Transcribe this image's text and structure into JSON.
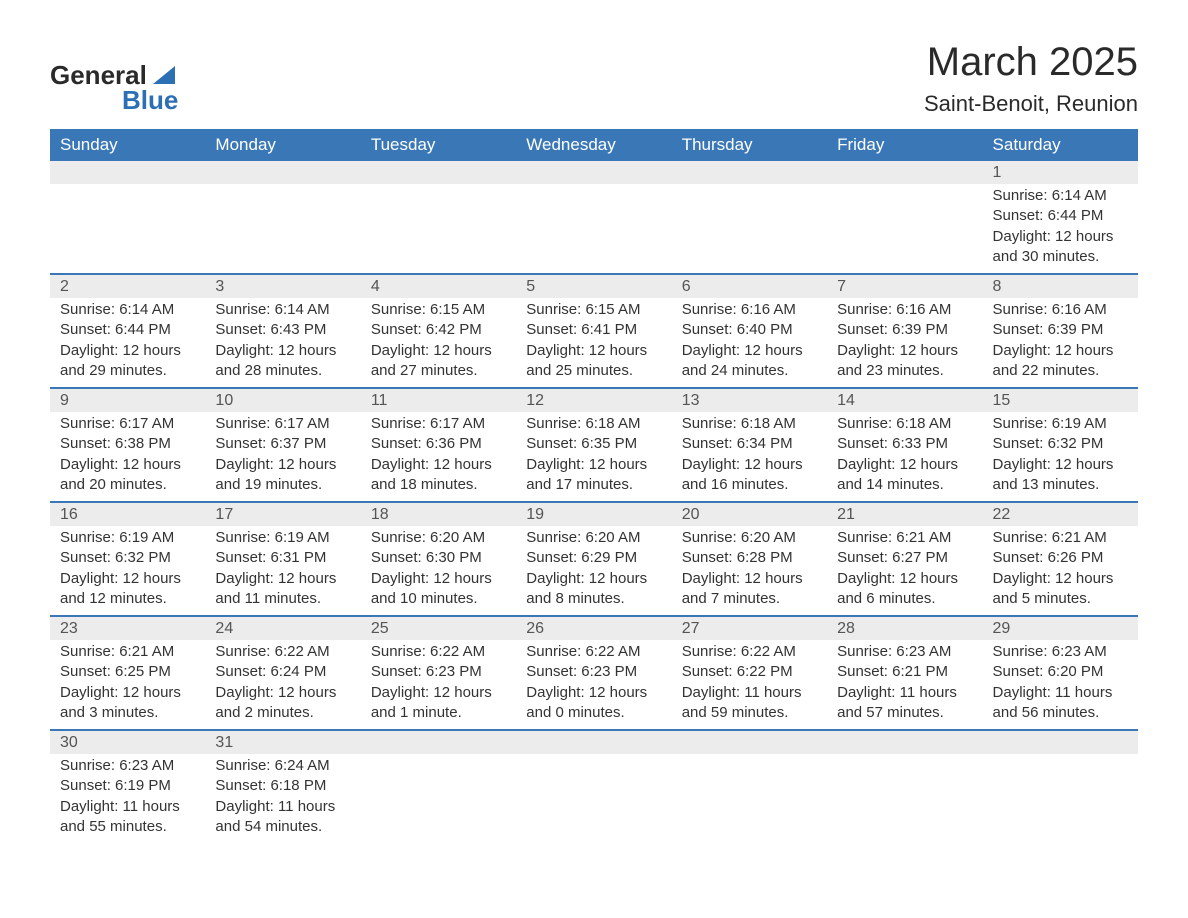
{
  "logo": {
    "word1": "General",
    "word2": "Blue"
  },
  "title": "March 2025",
  "location": "Saint-Benoit, Reunion",
  "colors": {
    "header_bg": "#3a77b7",
    "header_text": "#ffffff",
    "daynum_bg": "#ececec",
    "row_border": "#3a77b7",
    "logo_accent": "#2d6fb5",
    "body_text": "#333333"
  },
  "day_headers": [
    "Sunday",
    "Monday",
    "Tuesday",
    "Wednesday",
    "Thursday",
    "Friday",
    "Saturday"
  ],
  "weeks": [
    [
      null,
      null,
      null,
      null,
      null,
      null,
      {
        "n": "1",
        "sr": "Sunrise: 6:14 AM",
        "ss": "Sunset: 6:44 PM",
        "dl": "Daylight: 12 hours and 30 minutes."
      }
    ],
    [
      {
        "n": "2",
        "sr": "Sunrise: 6:14 AM",
        "ss": "Sunset: 6:44 PM",
        "dl": "Daylight: 12 hours and 29 minutes."
      },
      {
        "n": "3",
        "sr": "Sunrise: 6:14 AM",
        "ss": "Sunset: 6:43 PM",
        "dl": "Daylight: 12 hours and 28 minutes."
      },
      {
        "n": "4",
        "sr": "Sunrise: 6:15 AM",
        "ss": "Sunset: 6:42 PM",
        "dl": "Daylight: 12 hours and 27 minutes."
      },
      {
        "n": "5",
        "sr": "Sunrise: 6:15 AM",
        "ss": "Sunset: 6:41 PM",
        "dl": "Daylight: 12 hours and 25 minutes."
      },
      {
        "n": "6",
        "sr": "Sunrise: 6:16 AM",
        "ss": "Sunset: 6:40 PM",
        "dl": "Daylight: 12 hours and 24 minutes."
      },
      {
        "n": "7",
        "sr": "Sunrise: 6:16 AM",
        "ss": "Sunset: 6:39 PM",
        "dl": "Daylight: 12 hours and 23 minutes."
      },
      {
        "n": "8",
        "sr": "Sunrise: 6:16 AM",
        "ss": "Sunset: 6:39 PM",
        "dl": "Daylight: 12 hours and 22 minutes."
      }
    ],
    [
      {
        "n": "9",
        "sr": "Sunrise: 6:17 AM",
        "ss": "Sunset: 6:38 PM",
        "dl": "Daylight: 12 hours and 20 minutes."
      },
      {
        "n": "10",
        "sr": "Sunrise: 6:17 AM",
        "ss": "Sunset: 6:37 PM",
        "dl": "Daylight: 12 hours and 19 minutes."
      },
      {
        "n": "11",
        "sr": "Sunrise: 6:17 AM",
        "ss": "Sunset: 6:36 PM",
        "dl": "Daylight: 12 hours and 18 minutes."
      },
      {
        "n": "12",
        "sr": "Sunrise: 6:18 AM",
        "ss": "Sunset: 6:35 PM",
        "dl": "Daylight: 12 hours and 17 minutes."
      },
      {
        "n": "13",
        "sr": "Sunrise: 6:18 AM",
        "ss": "Sunset: 6:34 PM",
        "dl": "Daylight: 12 hours and 16 minutes."
      },
      {
        "n": "14",
        "sr": "Sunrise: 6:18 AM",
        "ss": "Sunset: 6:33 PM",
        "dl": "Daylight: 12 hours and 14 minutes."
      },
      {
        "n": "15",
        "sr": "Sunrise: 6:19 AM",
        "ss": "Sunset: 6:32 PM",
        "dl": "Daylight: 12 hours and 13 minutes."
      }
    ],
    [
      {
        "n": "16",
        "sr": "Sunrise: 6:19 AM",
        "ss": "Sunset: 6:32 PM",
        "dl": "Daylight: 12 hours and 12 minutes."
      },
      {
        "n": "17",
        "sr": "Sunrise: 6:19 AM",
        "ss": "Sunset: 6:31 PM",
        "dl": "Daylight: 12 hours and 11 minutes."
      },
      {
        "n": "18",
        "sr": "Sunrise: 6:20 AM",
        "ss": "Sunset: 6:30 PM",
        "dl": "Daylight: 12 hours and 10 minutes."
      },
      {
        "n": "19",
        "sr": "Sunrise: 6:20 AM",
        "ss": "Sunset: 6:29 PM",
        "dl": "Daylight: 12 hours and 8 minutes."
      },
      {
        "n": "20",
        "sr": "Sunrise: 6:20 AM",
        "ss": "Sunset: 6:28 PM",
        "dl": "Daylight: 12 hours and 7 minutes."
      },
      {
        "n": "21",
        "sr": "Sunrise: 6:21 AM",
        "ss": "Sunset: 6:27 PM",
        "dl": "Daylight: 12 hours and 6 minutes."
      },
      {
        "n": "22",
        "sr": "Sunrise: 6:21 AM",
        "ss": "Sunset: 6:26 PM",
        "dl": "Daylight: 12 hours and 5 minutes."
      }
    ],
    [
      {
        "n": "23",
        "sr": "Sunrise: 6:21 AM",
        "ss": "Sunset: 6:25 PM",
        "dl": "Daylight: 12 hours and 3 minutes."
      },
      {
        "n": "24",
        "sr": "Sunrise: 6:22 AM",
        "ss": "Sunset: 6:24 PM",
        "dl": "Daylight: 12 hours and 2 minutes."
      },
      {
        "n": "25",
        "sr": "Sunrise: 6:22 AM",
        "ss": "Sunset: 6:23 PM",
        "dl": "Daylight: 12 hours and 1 minute."
      },
      {
        "n": "26",
        "sr": "Sunrise: 6:22 AM",
        "ss": "Sunset: 6:23 PM",
        "dl": "Daylight: 12 hours and 0 minutes."
      },
      {
        "n": "27",
        "sr": "Sunrise: 6:22 AM",
        "ss": "Sunset: 6:22 PM",
        "dl": "Daylight: 11 hours and 59 minutes."
      },
      {
        "n": "28",
        "sr": "Sunrise: 6:23 AM",
        "ss": "Sunset: 6:21 PM",
        "dl": "Daylight: 11 hours and 57 minutes."
      },
      {
        "n": "29",
        "sr": "Sunrise: 6:23 AM",
        "ss": "Sunset: 6:20 PM",
        "dl": "Daylight: 11 hours and 56 minutes."
      }
    ],
    [
      {
        "n": "30",
        "sr": "Sunrise: 6:23 AM",
        "ss": "Sunset: 6:19 PM",
        "dl": "Daylight: 11 hours and 55 minutes."
      },
      {
        "n": "31",
        "sr": "Sunrise: 6:24 AM",
        "ss": "Sunset: 6:18 PM",
        "dl": "Daylight: 11 hours and 54 minutes."
      },
      null,
      null,
      null,
      null,
      null
    ]
  ]
}
